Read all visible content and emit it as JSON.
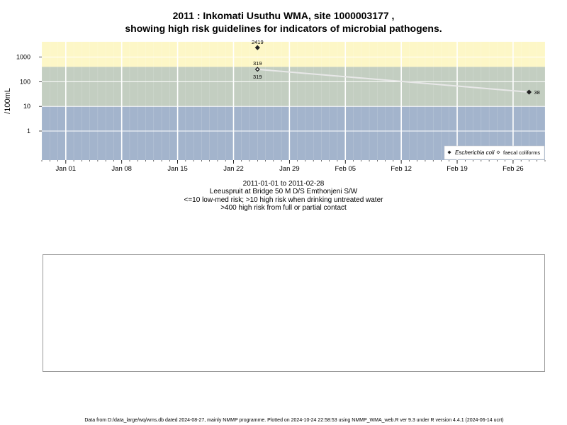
{
  "title_line1": "2011 : Inkomati Usuthu WMA, site 1000003177 ,",
  "title_line2": "showing high risk guidelines for indicators of microbial pathogens.",
  "captions": {
    "date_range": "2011-01-01 to 2011-02-28",
    "site_name": "Leeuspruit at Bridge 50 M D/S Emthonjeni S/W",
    "guideline_drinking": "<=10 low-med risk; >10 high risk when drinking untreated water",
    "guideline_contact": ">400 high risk from full or partial contact"
  },
  "footer": "Data from D:/data_large/wq/wms.db dated 2024-08-27, mainly NMMP programme. Plotted on 2024-10-24 22:58:53 using NMMP_WMA_web.R ver 9.3 under R version 4.4.1 (2024-06-14 ucrt)",
  "colors": {
    "band_high_contact": "#fdf7c7",
    "band_high_drinking": "#c3cec1",
    "band_low": "#a3b4cc",
    "grid": "#ffffff",
    "series_line": "#e8e8e8",
    "marker": "#222222"
  },
  "chart_data": {
    "type": "scatter",
    "title": "2011 : Inkomati Usuthu WMA, site 1000003177 , showing high risk guidelines for indicators of microbial pathogens.",
    "ylabel": "/100mL",
    "xlabel": "",
    "y_scale": "log",
    "x_range": [
      "2010-12-29",
      "2011-03-02"
    ],
    "ylim": [
      0.1,
      4000
    ],
    "x_ticks": [
      {
        "date": "2011-01-01",
        "label": "Jan 01"
      },
      {
        "date": "2011-01-08",
        "label": "Jan 08"
      },
      {
        "date": "2011-01-15",
        "label": "Jan 15"
      },
      {
        "date": "2011-01-22",
        "label": "Jan 22"
      },
      {
        "date": "2011-01-29",
        "label": "Jan 29"
      },
      {
        "date": "2011-02-05",
        "label": "Feb 05"
      },
      {
        "date": "2011-02-12",
        "label": "Feb 12"
      },
      {
        "date": "2011-02-19",
        "label": "Feb 19"
      },
      {
        "date": "2011-02-26",
        "label": "Feb 26"
      }
    ],
    "y_ticks": [
      {
        "value": 1,
        "label": "1"
      },
      {
        "value": 10,
        "label": "10"
      },
      {
        "value": 100,
        "label": "100"
      },
      {
        "value": 1000,
        "label": "1000"
      }
    ],
    "guidelines": [
      10,
      400
    ],
    "grid": true,
    "legend_position": "bottom-right",
    "series": [
      {
        "name": "Escherichia coli",
        "marker": "filled-diamond",
        "points": [
          {
            "x": "2011-01-25",
            "y": 2419,
            "label": "2419"
          },
          {
            "x": "2011-01-25",
            "y": 319,
            "label": "319"
          },
          {
            "x": "2011-02-28",
            "y": 38,
            "label": "38"
          }
        ]
      },
      {
        "name": "faecal coliforms",
        "marker": "open-diamond",
        "points": [
          {
            "x": "2011-01-25",
            "y": 319,
            "label": "319"
          }
        ]
      }
    ]
  }
}
